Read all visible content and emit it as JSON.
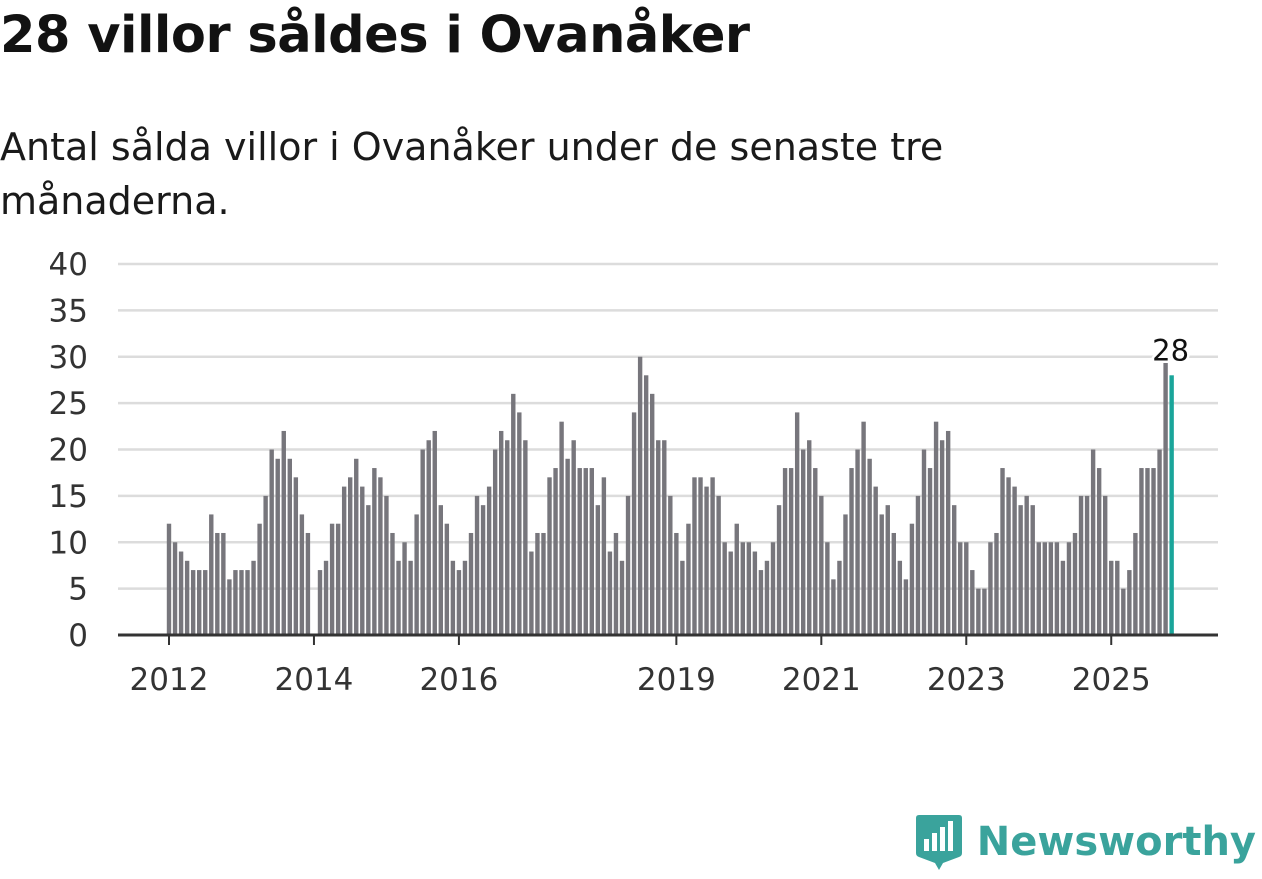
{
  "title": "28 villor såldes i Ovanåker",
  "subtitle": "Antal sålda villor i Ovanåker under de senaste tre månaderna.",
  "brand": {
    "name": "Newsworthy",
    "icon": "newsworthy-logo-icon",
    "color": "#3aa39c"
  },
  "colors": {
    "bar": "#77767c",
    "highlight": "#1aa59a",
    "grid": "#dcdcdc",
    "axis": "#333333",
    "text": "#333333"
  },
  "chart_data": {
    "type": "bar",
    "title": "28 villor såldes i Ovanåker",
    "xlabel": "",
    "ylabel": "",
    "ylim": [
      0,
      40
    ],
    "y_ticks": [
      "0",
      "5",
      "10",
      "15",
      "20",
      "25",
      "30",
      "35",
      "40"
    ],
    "x_tick_labels": [
      {
        "label": "2012",
        "index": 0
      },
      {
        "label": "2014",
        "index": 24
      },
      {
        "label": "2016",
        "index": 48
      },
      {
        "label": "2019",
        "index": 84
      },
      {
        "label": "2021",
        "index": 108
      },
      {
        "label": "2023",
        "index": 132
      },
      {
        "label": "2025",
        "index": 156
      }
    ],
    "start": "2012-01",
    "highlight_label": "28",
    "values": [
      12,
      10,
      9,
      8,
      7,
      7,
      7,
      13,
      11,
      11,
      6,
      7,
      7,
      7,
      8,
      12,
      15,
      20,
      19,
      22,
      19,
      17,
      13,
      11,
      0,
      7,
      8,
      12,
      12,
      16,
      17,
      19,
      16,
      14,
      18,
      17,
      15,
      11,
      8,
      10,
      8,
      13,
      20,
      21,
      22,
      14,
      12,
      8,
      7,
      8,
      11,
      15,
      14,
      16,
      20,
      22,
      21,
      26,
      24,
      21,
      9,
      11,
      11,
      17,
      18,
      23,
      19,
      21,
      18,
      18,
      18,
      14,
      17,
      9,
      11,
      8,
      15,
      24,
      30,
      28,
      26,
      21,
      21,
      15,
      11,
      8,
      12,
      17,
      17,
      16,
      17,
      15,
      10,
      9,
      12,
      10,
      10,
      9,
      7,
      8,
      10,
      14,
      18,
      18,
      24,
      20,
      21,
      18,
      15,
      10,
      6,
      8,
      13,
      18,
      20,
      23,
      19,
      16,
      13,
      14,
      11,
      8,
      6,
      12,
      15,
      20,
      18,
      23,
      21,
      22,
      14,
      10,
      10,
      7,
      5,
      5,
      10,
      11,
      18,
      17,
      16,
      14,
      15,
      14,
      10,
      10,
      10,
      10,
      8,
      10,
      11,
      15,
      15,
      20,
      18,
      15,
      8,
      8,
      5,
      7,
      11,
      18,
      18,
      18,
      20,
      29.5,
      28
    ]
  }
}
